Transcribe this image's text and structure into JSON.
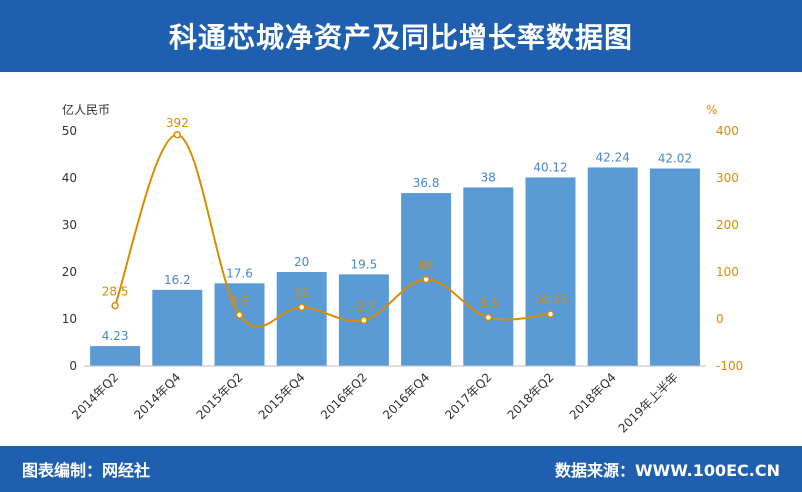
{
  "header": {
    "title": "科通芯城净资产及同比增长率数据图"
  },
  "footer": {
    "left": "图表编制：网经社",
    "right": "数据来源：WWW.100EC.CN"
  },
  "colors": {
    "header_bg": "#1f5fb0",
    "bar": "#5b9bd5",
    "line": "#d98c00"
  },
  "chart_data": {
    "type": "bar",
    "categories": [
      "2014年Q2",
      "2014年Q4",
      "2015年Q2",
      "2015年Q4",
      "2016年Q2",
      "2016年Q4",
      "2017年Q2",
      "2018年Q2",
      "2018年Q4",
      "2019年上半年"
    ],
    "ylabel": "亿人民币",
    "y2label": "%",
    "ylim": [
      0,
      50
    ],
    "y2lim": [
      -100,
      400
    ],
    "yticks": [
      "0",
      "10",
      "20",
      "30",
      "40",
      "50"
    ],
    "y2ticks": [
      "-100",
      "0",
      "100",
      "200",
      "300",
      "400"
    ],
    "series": [
      {
        "values": [
          4.23,
          16.2,
          17.6,
          20,
          19.5,
          36.8,
          38,
          40.12,
          42.24,
          42.02
        ],
        "labels": [
          "4.23",
          "16.2",
          "17.6",
          "20",
          "19.5",
          "36.8",
          "38",
          "40.12",
          "42.24",
          "42.02"
        ]
      },
      {
        "type": "line",
        "axis": "right",
        "values": [
          28.5,
          392,
          8.6,
          25,
          -2.7,
          84,
          3.3,
          10.25,
          null,
          null
        ],
        "labels": [
          "28.5",
          "392",
          "8.6",
          "25",
          "-2.7",
          "84",
          "3.3",
          "10.25",
          "",
          ""
        ]
      }
    ]
  }
}
